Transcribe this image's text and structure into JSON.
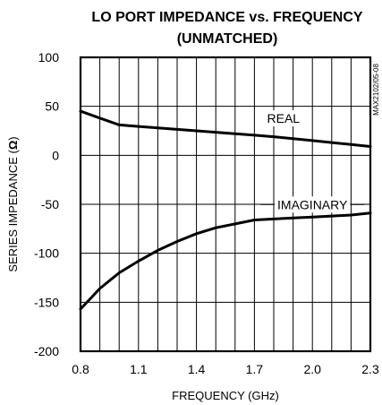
{
  "chart_data": {
    "type": "line",
    "title": "LO PORT IMPEDANCE vs. FREQUENCY",
    "subtitle": "(UNMATCHED)",
    "xlabel": "FREQUENCY (GHz)",
    "ylabel_main": "SERIES IMPEDANCE (",
    "ylabel_unit": "Ω",
    "ylabel_close": ")",
    "xlim": [
      0.8,
      2.3
    ],
    "ylim": [
      -200,
      100
    ],
    "x_ticks": [
      0.8,
      1.1,
      1.4,
      1.7,
      2.0,
      2.3
    ],
    "x_tick_labels": [
      "0.8",
      "1.1",
      "1.4",
      "1.7",
      "2.0",
      "2.3"
    ],
    "y_ticks": [
      100,
      50,
      0,
      -50,
      -100,
      -150,
      -200
    ],
    "y_tick_labels": [
      "100",
      "50",
      "0",
      "-50",
      "-100",
      "-150",
      "-200"
    ],
    "grid": true,
    "series": [
      {
        "name": "REAL",
        "color": "#000000",
        "x": [
          0.8,
          0.9,
          1.0,
          1.1,
          1.2,
          1.3,
          1.4,
          1.5,
          1.6,
          1.7,
          1.8,
          1.9,
          2.0,
          2.1,
          2.2,
          2.3
        ],
        "y": [
          45,
          38,
          31,
          29.5,
          28,
          26.5,
          25,
          23.5,
          22,
          20.5,
          19,
          17,
          15,
          13,
          11,
          9
        ]
      },
      {
        "name": "IMAGINARY",
        "color": "#000000",
        "x": [
          0.8,
          0.9,
          1.0,
          1.1,
          1.2,
          1.3,
          1.4,
          1.5,
          1.6,
          1.7,
          1.8,
          1.9,
          2.0,
          2.1,
          2.2,
          2.3
        ],
        "y": [
          -157,
          -136,
          -120,
          -108,
          -97,
          -88,
          -80,
          -74,
          -70,
          -66,
          -65,
          -64,
          -63,
          -62,
          -61,
          -59
        ]
      }
    ],
    "side_code": "MAX2102/05-08"
  }
}
